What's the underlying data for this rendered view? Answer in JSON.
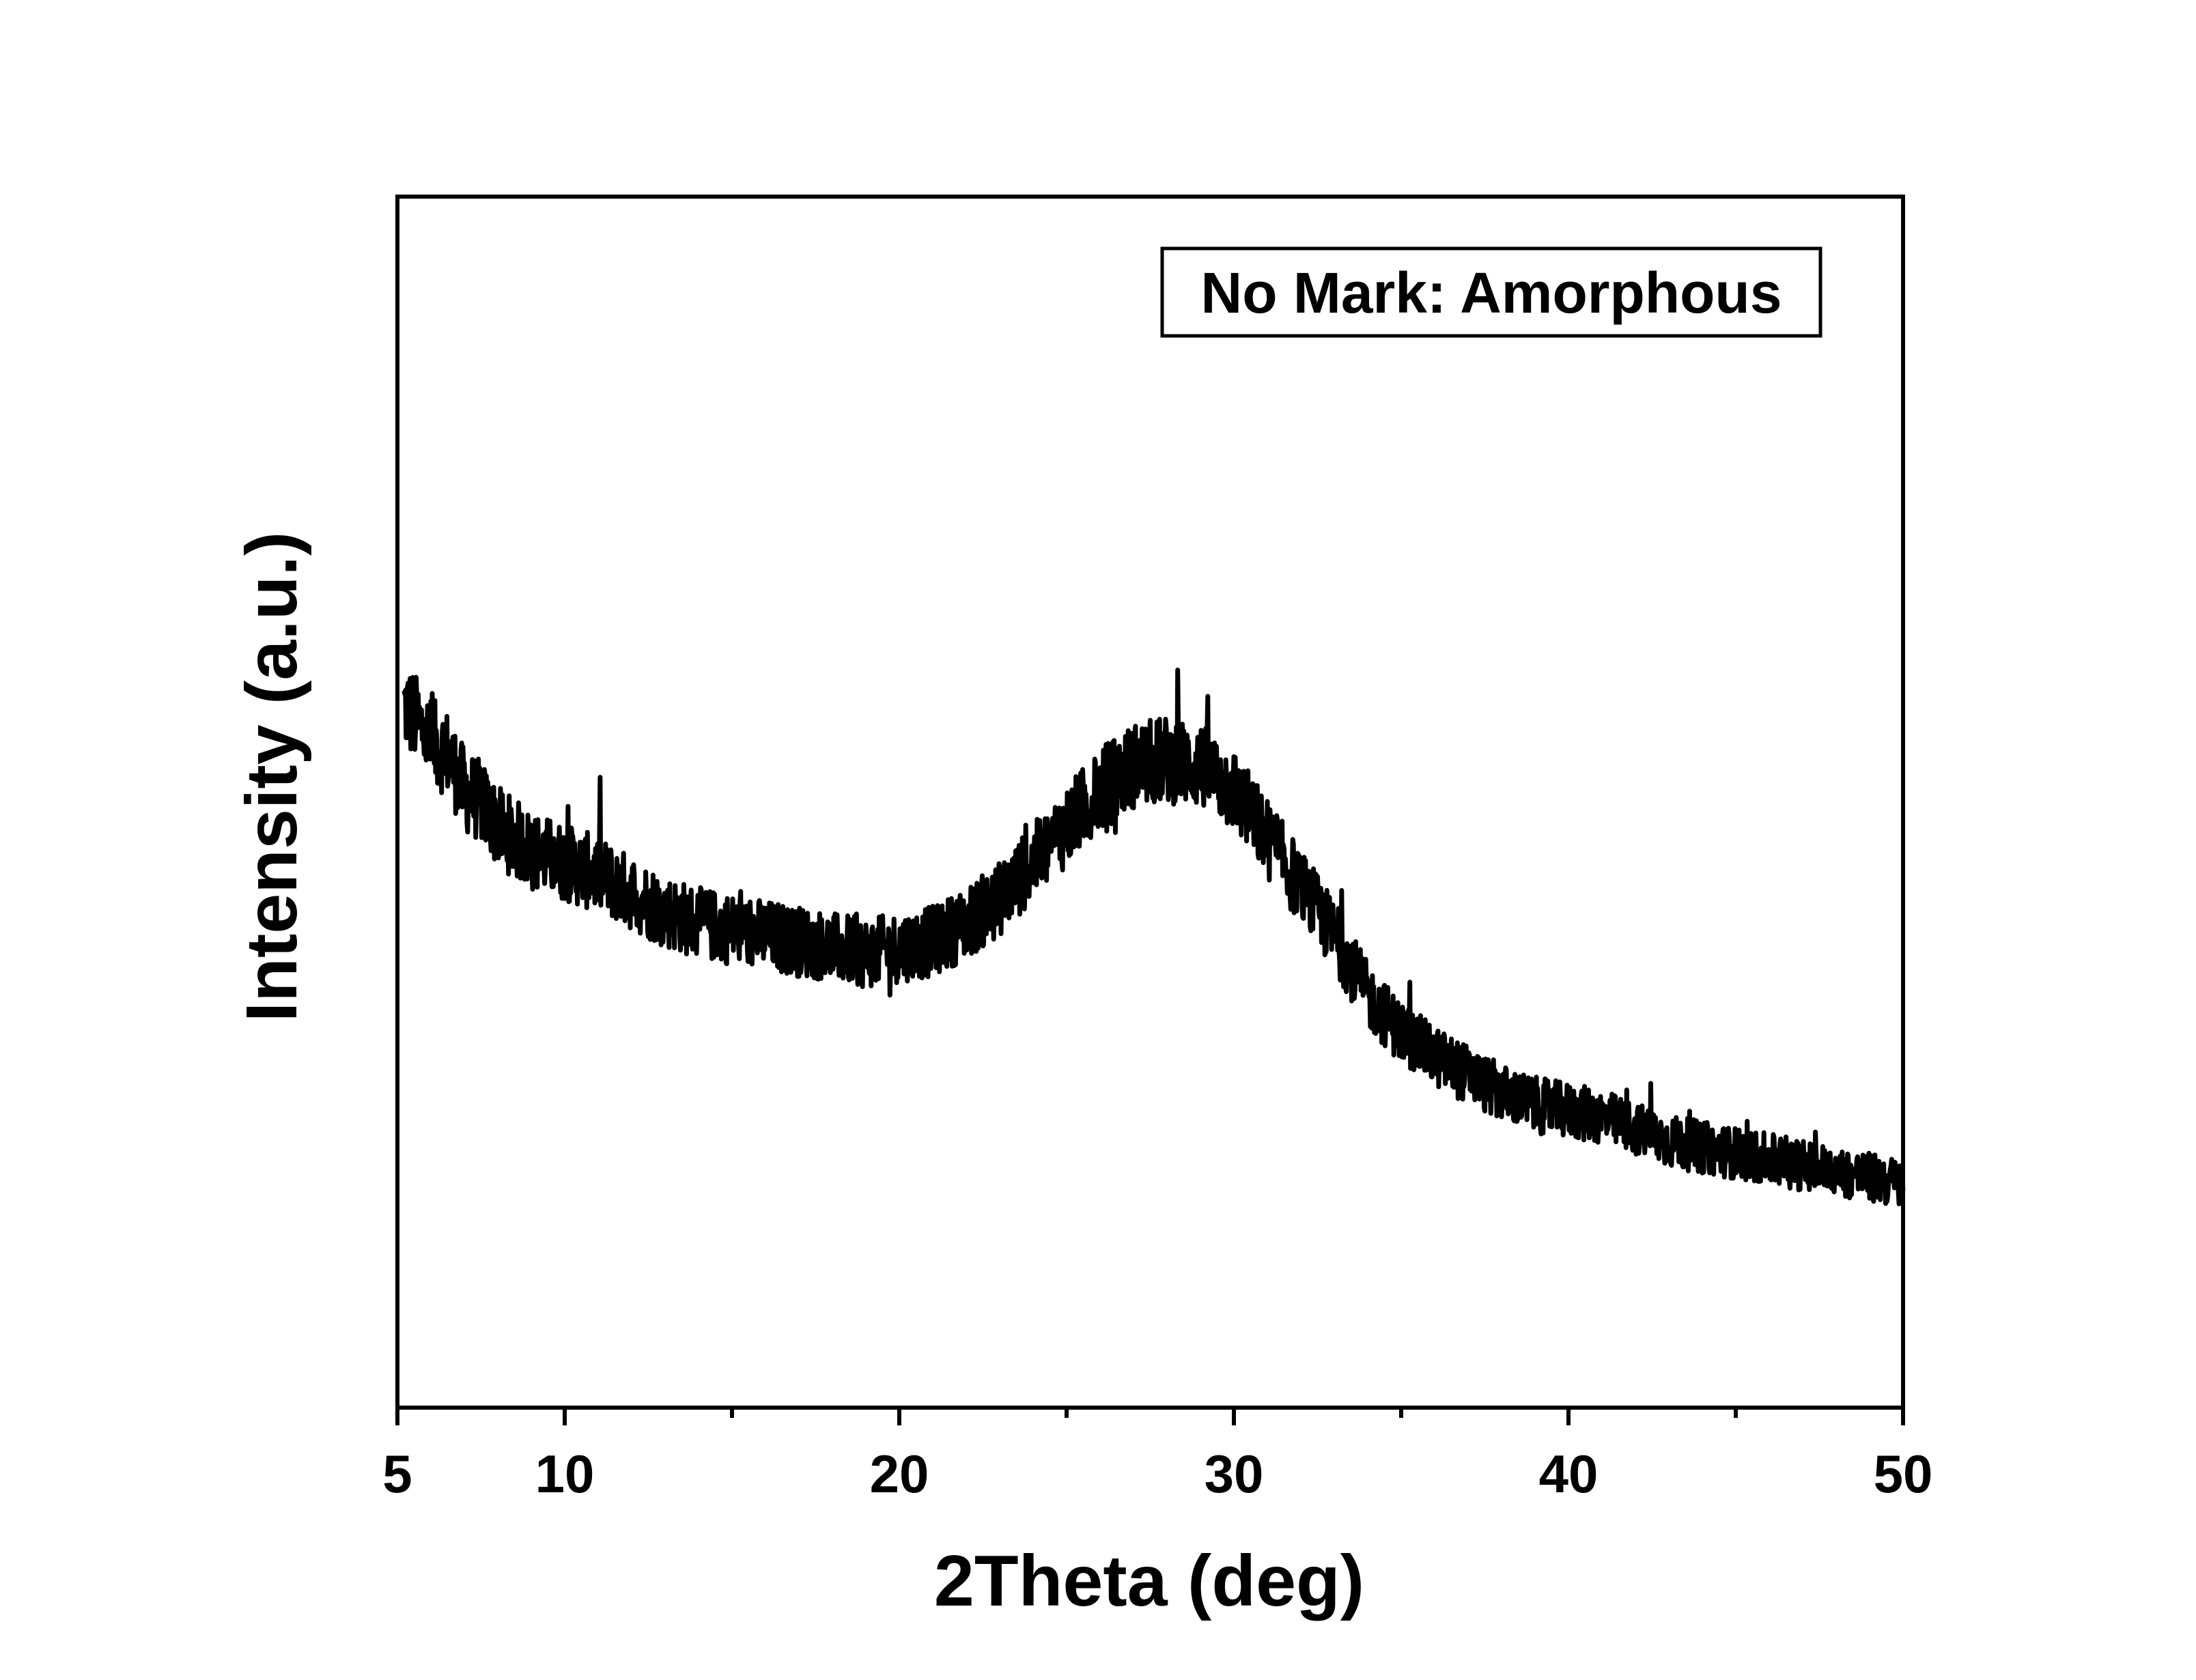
{
  "chart_data": {
    "type": "line",
    "xlabel": "2Theta (deg)",
    "ylabel": "Intensity (a.u.)",
    "xlim": [
      5,
      50
    ],
    "ylim": [
      0,
      100
    ],
    "x_ticks": [
      5,
      10,
      20,
      30,
      40,
      50
    ],
    "x_minor_ticks": [
      15,
      25,
      35,
      45
    ],
    "y_ticks_shown": false,
    "grid": false,
    "legend": {
      "text": "No Mark: Amorphous",
      "placement": "top-right"
    },
    "line_color": "#000000",
    "series": [
      {
        "x": [
          5.2,
          5.5,
          6.0,
          6.5,
          7.0,
          7.5,
          8.0,
          8.5,
          9.0,
          9.5,
          10.0,
          11.0,
          12.0,
          13.0,
          14.0,
          15.0,
          16.0,
          17.0,
          18.0,
          19.0,
          20.0,
          21.0,
          22.0,
          23.0,
          24.0,
          25.0,
          26.0,
          27.0,
          28.0,
          29.0,
          30.0,
          31.0,
          32.0,
          33.0,
          34.0,
          35.0,
          36.0,
          37.0,
          38.0,
          39.0,
          40.0,
          41.0,
          42.0,
          43.0,
          44.0,
          45.0,
          46.0,
          47.0,
          48.0,
          49.0,
          50.0
        ],
        "y": [
          58,
          57,
          55,
          54,
          51,
          50,
          48,
          47,
          46,
          45.5,
          45,
          44,
          42.5,
          41,
          40,
          39.5,
          39,
          38.5,
          38,
          37.5,
          38,
          38.5,
          40,
          42,
          45,
          48,
          51,
          53,
          53.5,
          53,
          51,
          47,
          43,
          39,
          34,
          31,
          29,
          27.5,
          26,
          25,
          24.5,
          24,
          23,
          22,
          21.5,
          21,
          20.5,
          20,
          19.5,
          19,
          18.5
        ]
      }
    ]
  }
}
